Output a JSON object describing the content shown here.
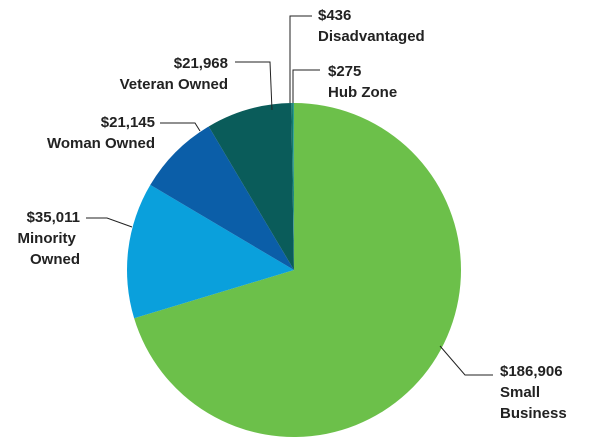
{
  "chart_data": {
    "type": "pie",
    "categories": [
      "Small Business",
      "Minority Owned",
      "Woman Owned",
      "Veteran Owned",
      "Disadvantaged",
      "Hub Zone"
    ],
    "values": [
      186906,
      35011,
      21145,
      21968,
      436,
      275
    ],
    "value_labels": [
      "$186,906",
      "$35,011",
      "$21,145",
      "$21,968",
      "$436",
      "$275"
    ],
    "colors": [
      "#6cc04a",
      "#0aa0dc",
      "#0b5ea8",
      "#0a5c5a",
      "#137a6e",
      "#2a9d8f"
    ]
  }
}
